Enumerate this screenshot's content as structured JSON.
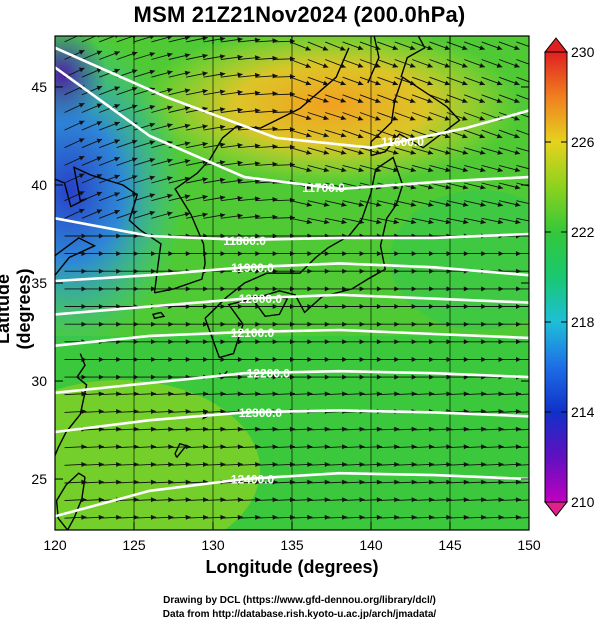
{
  "title": "MSM 21Z21Nov2024 (200.0hPa)",
  "chart_data": {
    "type": "heatmap",
    "title": "MSM 21Z21Nov2024 (200.0hPa)",
    "xlabel": "Longitude (degrees)",
    "ylabel": "Latitude  (degrees)",
    "xlim": [
      120,
      150
    ],
    "ylim": [
      22.4,
      47.6
    ],
    "x_ticks": [
      "120",
      "125",
      "130",
      "135",
      "140",
      "145",
      "150"
    ],
    "y_ticks": [
      "25",
      "30",
      "35",
      "40",
      "45"
    ],
    "colorbar": {
      "min": 210,
      "max": 230,
      "ticks": [
        "230",
        "226",
        "222",
        "218",
        "214",
        "210"
      ],
      "extend": "both"
    },
    "contours": [
      {
        "label": "11600.0",
        "points": [
          [
            120,
            47
          ],
          [
            127,
            44.5
          ],
          [
            134,
            42.4
          ],
          [
            140,
            41.9
          ],
          [
            146,
            42.9
          ],
          [
            150,
            43.8
          ]
        ]
      },
      {
        "label": "11700.0",
        "points": [
          [
            120,
            46
          ],
          [
            126,
            42.5
          ],
          [
            132,
            40.4
          ],
          [
            138,
            39.8
          ],
          [
            145,
            40.2
          ],
          [
            150,
            40.4
          ]
        ]
      },
      {
        "label": "11800.0",
        "points": [
          [
            120,
            38.3
          ],
          [
            126,
            37.4
          ],
          [
            132,
            37.2
          ],
          [
            138,
            37.3
          ],
          [
            144,
            37.3
          ],
          [
            150,
            37.5
          ]
        ]
      },
      {
        "label": "11900.0",
        "points": [
          [
            120,
            35.1
          ],
          [
            126,
            35.4
          ],
          [
            132,
            35.8
          ],
          [
            138,
            36
          ],
          [
            144,
            35.8
          ],
          [
            150,
            35.4
          ]
        ]
      },
      {
        "label": "12000.0",
        "points": [
          [
            120,
            33.4
          ],
          [
            126,
            33.8
          ],
          [
            132,
            34.2
          ],
          [
            138,
            34.4
          ],
          [
            144,
            34.2
          ],
          [
            150,
            34
          ]
        ]
      },
      {
        "label": "12100.0",
        "points": [
          [
            120,
            31.8
          ],
          [
            126,
            32.3
          ],
          [
            132,
            32.5
          ],
          [
            138,
            32.6
          ],
          [
            144,
            32.4
          ],
          [
            150,
            32.2
          ]
        ]
      },
      {
        "label": "12200.0",
        "points": [
          [
            120,
            29.4
          ],
          [
            126,
            29.9
          ],
          [
            132,
            30.4
          ],
          [
            138,
            30.5
          ],
          [
            144,
            30.4
          ],
          [
            150,
            30.2
          ]
        ]
      },
      {
        "label": "12300.0",
        "points": [
          [
            120,
            27.4
          ],
          [
            126,
            28
          ],
          [
            132,
            28.4
          ],
          [
            138,
            28.5
          ],
          [
            144,
            28.4
          ],
          [
            150,
            28.2
          ]
        ]
      },
      {
        "label": "12400.0",
        "points": [
          [
            120,
            23.1
          ],
          [
            126,
            24.4
          ],
          [
            132,
            25
          ],
          [
            138,
            25.3
          ],
          [
            144,
            25.2
          ],
          [
            150,
            25
          ]
        ]
      }
    ]
  },
  "credits": {
    "line1": "Drawing by DCL (https://www.gfd-dennou.org/library/dcl/)",
    "line2": "Data from http://database.rish.kyoto-u.ac.jp/arch/jmadata/"
  }
}
